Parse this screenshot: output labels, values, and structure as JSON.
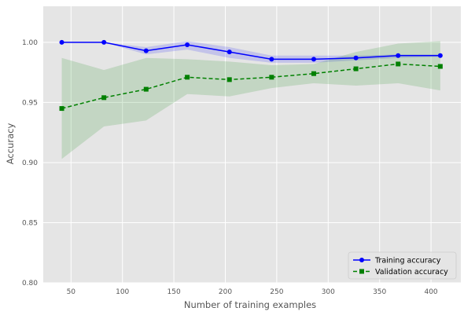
{
  "chart_data": {
    "type": "line",
    "title": "",
    "xlabel": "Number of training examples",
    "ylabel": "Accuracy",
    "xlim": [
      23,
      429
    ],
    "ylim": [
      0.8,
      1.03
    ],
    "xticks": [
      50,
      100,
      150,
      200,
      250,
      300,
      350,
      400
    ],
    "yticks": [
      0.8,
      0.85,
      0.9,
      0.95,
      1.0
    ],
    "xtick_labels": [
      "50",
      "100",
      "150",
      "200",
      "250",
      "300",
      "350",
      "400"
    ],
    "ytick_labels": [
      "0.80",
      "0.85",
      "0.90",
      "0.95",
      "1.00"
    ],
    "grid": true,
    "legend_position": "lower-right",
    "x": [
      41,
      82,
      123,
      163,
      204,
      245,
      286,
      327,
      368,
      409
    ],
    "series": [
      {
        "name": "Training accuracy",
        "color": "#0000ff",
        "band_color": "#0000ff",
        "marker": "circle",
        "linestyle": "solid",
        "values": [
          1.0,
          1.0,
          0.993,
          0.998,
          0.992,
          0.986,
          0.986,
          0.987,
          0.989,
          0.989
        ],
        "band_upper": [
          1.0,
          1.0,
          0.996,
          1.001,
          0.996,
          0.989,
          0.989,
          0.989,
          0.99,
          0.99
        ],
        "band_lower": [
          1.0,
          1.0,
          0.99,
          0.994,
          0.987,
          0.983,
          0.983,
          0.985,
          0.987,
          0.988
        ]
      },
      {
        "name": "Validation accuracy",
        "color": "#008000",
        "band_color": "#008000",
        "marker": "square",
        "linestyle": "dashed",
        "values": [
          0.945,
          0.954,
          0.961,
          0.971,
          0.969,
          0.971,
          0.974,
          0.978,
          0.982,
          0.98
        ],
        "band_upper": [
          0.987,
          0.977,
          0.987,
          0.986,
          0.984,
          0.981,
          0.982,
          0.992,
          0.999,
          1.001
        ],
        "band_lower": [
          0.903,
          0.93,
          0.935,
          0.957,
          0.955,
          0.962,
          0.966,
          0.964,
          0.966,
          0.96
        ]
      }
    ]
  },
  "colors": {
    "plot_background": "#e5e5e5",
    "grid": "#ffffff",
    "text": "#555555"
  }
}
